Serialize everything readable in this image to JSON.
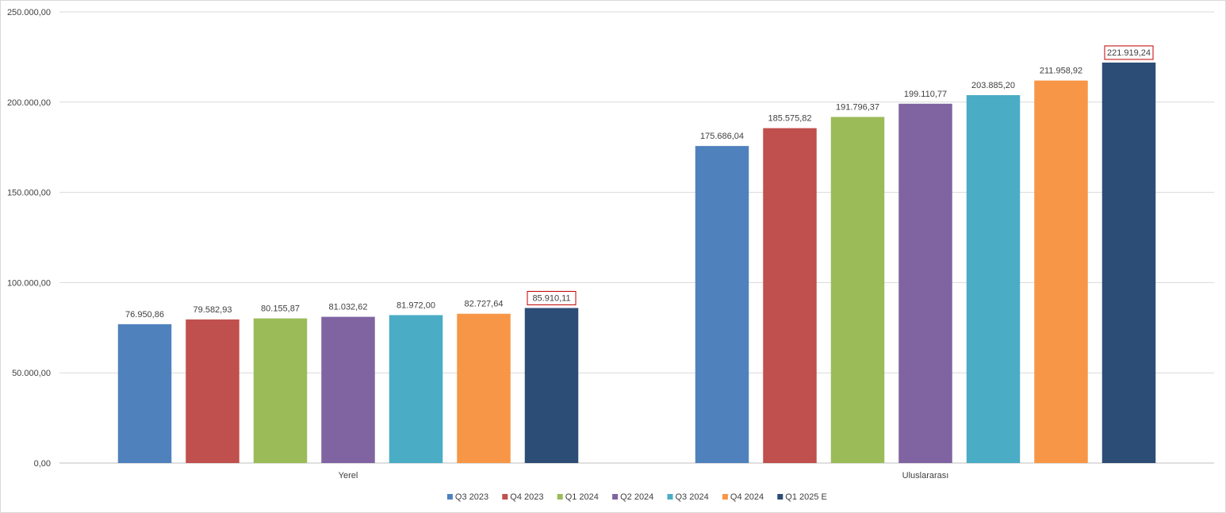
{
  "chart_data": {
    "type": "bar",
    "categories": [
      "Yerel",
      "Uluslararası"
    ],
    "series": [
      {
        "name": "Q3 2023",
        "color": "#4f81bd",
        "values": [
          76950.86,
          175686.04
        ],
        "labels": [
          "76.950,86",
          "175.686,04"
        ]
      },
      {
        "name": "Q4 2023",
        "color": "#c0504d",
        "values": [
          79582.93,
          185575.82
        ],
        "labels": [
          "79.582,93",
          "185.575,82"
        ]
      },
      {
        "name": "Q1 2024",
        "color": "#9bbb59",
        "values": [
          80155.87,
          191796.37
        ],
        "labels": [
          "80.155,87",
          "191.796,37"
        ]
      },
      {
        "name": "Q2 2024",
        "color": "#8064a2",
        "values": [
          81032.62,
          199110.77
        ],
        "labels": [
          "81.032,62",
          "199.110,77"
        ]
      },
      {
        "name": "Q3 2024",
        "color": "#4bacc6",
        "values": [
          81972.0,
          203885.2
        ],
        "labels": [
          "81.972,00",
          "203.885,20"
        ]
      },
      {
        "name": "Q4 2024",
        "color": "#f79646",
        "values": [
          82727.64,
          211958.92
        ],
        "labels": [
          "82.727,64",
          "211.958,92"
        ]
      },
      {
        "name": "Q1 2025 E",
        "color": "#2c4d75",
        "values": [
          85910.11,
          221919.24
        ],
        "labels": [
          "85.910,11",
          "221.919,24"
        ],
        "highlight_labels": true
      }
    ],
    "ylim": [
      0,
      250000
    ],
    "yticks": [
      0,
      50000,
      100000,
      150000,
      200000,
      250000
    ],
    "ytick_labels": [
      "0,00",
      "50.000,00",
      "100.000,00",
      "150.000,00",
      "200.000,00",
      "250.000,00"
    ],
    "grid": true,
    "legend_position": "bottom",
    "title": "",
    "xlabel": "",
    "ylabel": "",
    "colors": {
      "gridline": "#d9d9d9",
      "axis": "#bfbfbf",
      "text": "#404040",
      "highlight_border": "#c00000"
    }
  }
}
